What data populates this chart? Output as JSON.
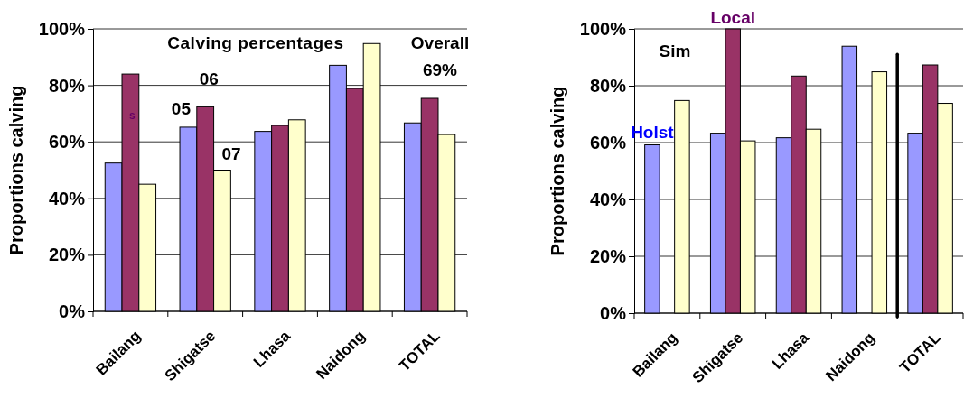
{
  "chart_data": [
    {
      "type": "bar",
      "title": "Calving percentages",
      "ylabel": "Proportions calving",
      "categories": [
        "Bailang",
        "Shigatse",
        "Lhasa",
        "Naidong",
        "TOTAL"
      ],
      "series": [
        {
          "name": "05",
          "color": "#9999ff",
          "values": [
            52.5,
            65.2,
            63.7,
            87.1,
            66.7
          ]
        },
        {
          "name": "06",
          "color": "#993366",
          "values": [
            84,
            72.4,
            65.8,
            78.9,
            75.4
          ]
        },
        {
          "name": "07",
          "color": "#ffffcc",
          "values": [
            45,
            50,
            67.8,
            94.8,
            62.6
          ]
        }
      ],
      "ylim": [
        0,
        100
      ],
      "yticks": [
        {
          "value": 0,
          "label": "0%"
        },
        {
          "value": 20,
          "label": "20%"
        },
        {
          "value": 40,
          "label": "40%"
        },
        {
          "value": 60,
          "label": "60%"
        },
        {
          "value": 80,
          "label": "80%"
        },
        {
          "value": 100,
          "label": "100%"
        }
      ],
      "grid": "y",
      "legend": false,
      "annotations": [
        "Overall 69%",
        "s"
      ]
    },
    {
      "type": "bar",
      "ylabel": "Proportions calving",
      "categories": [
        "Bailang",
        "Shigatse",
        "Lhasa",
        "Naidong",
        "TOTAL"
      ],
      "series": [
        {
          "name": "Holst",
          "color": "#9999ff",
          "values": [
            59.2,
            63.3,
            61.7,
            93.9,
            63.3
          ]
        },
        {
          "name": "Local",
          "color": "#993366",
          "values": [
            null,
            100,
            83.4,
            null,
            87.3
          ]
        },
        {
          "name": "Sim",
          "color": "#ffffcc",
          "values": [
            74.8,
            60.6,
            64.7,
            84.9,
            73.8
          ]
        }
      ],
      "ylim": [
        0,
        100
      ],
      "yticks": [
        {
          "value": 0,
          "label": "0%"
        },
        {
          "value": 20,
          "label": "20%"
        },
        {
          "value": 40,
          "label": "40%"
        },
        {
          "value": 60,
          "label": "60%"
        },
        {
          "value": 80,
          "label": "80%"
        },
        {
          "value": 100,
          "label": "100%"
        }
      ],
      "grid": "y",
      "legend": false,
      "ref_lines": [
        {
          "axis": "x",
          "value": "TOTAL",
          "color": "#000000"
        }
      ]
    }
  ]
}
